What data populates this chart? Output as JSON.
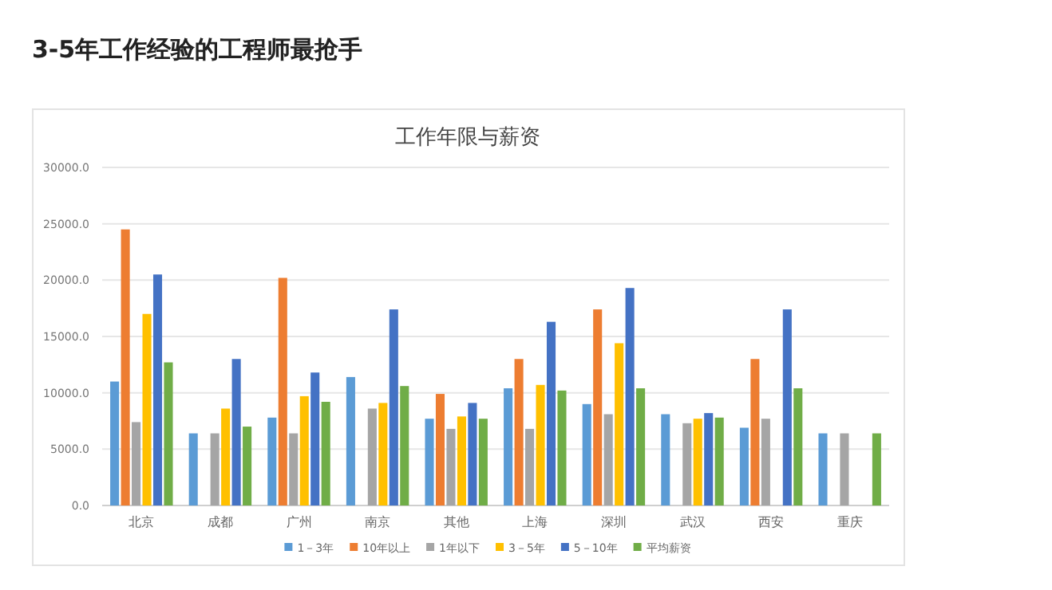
{
  "chart_data": {
    "type": "bar",
    "title": "3-5年工作经验的工程师最抢手",
    "subtitle": "工作年限与薪资",
    "categories": [
      "北京",
      "成都",
      "广州",
      "南京",
      "其他",
      "上海",
      "深圳",
      "武汉",
      "西安",
      "重庆"
    ],
    "series": [
      {
        "name": "1－3年",
        "color": "#5b9bd5",
        "values": [
          11000,
          6400,
          7800,
          11400,
          7700,
          10400,
          9000,
          8100,
          6900,
          6400
        ]
      },
      {
        "name": "10年以上",
        "color": "#ed7d31",
        "values": [
          24500,
          null,
          20200,
          null,
          9900,
          13000,
          17400,
          null,
          13000,
          null
        ]
      },
      {
        "name": "1年以下",
        "color": "#a5a5a5",
        "values": [
          7400,
          6400,
          6400,
          8600,
          6800,
          6800,
          8100,
          7300,
          7700,
          6400
        ]
      },
      {
        "name": "3－5年",
        "color": "#ffc000",
        "values": [
          17000,
          8600,
          9700,
          9100,
          7900,
          10700,
          14400,
          7700,
          null,
          null
        ]
      },
      {
        "name": "5－10年",
        "color": "#4472c4",
        "values": [
          20500,
          13000,
          11800,
          17400,
          9100,
          16300,
          19300,
          8200,
          17400,
          null
        ]
      },
      {
        "name": "平均薪资",
        "color": "#70ad47",
        "values": [
          12700,
          7000,
          9200,
          10600,
          7700,
          10200,
          10400,
          7800,
          10400,
          6400
        ]
      }
    ],
    "ylim": [
      0,
      30000
    ],
    "yticks": [
      {
        "value": 0,
        "label": "0.0"
      },
      {
        "value": 5000,
        "label": "5000.0"
      },
      {
        "value": 10000,
        "label": "10000.0"
      },
      {
        "value": 15000,
        "label": "15000.0"
      },
      {
        "value": 20000,
        "label": "20000.0"
      },
      {
        "value": 25000,
        "label": "25000.0"
      },
      {
        "value": 30000,
        "label": "30000.0"
      }
    ],
    "grid": "y",
    "legend": "bottom"
  }
}
